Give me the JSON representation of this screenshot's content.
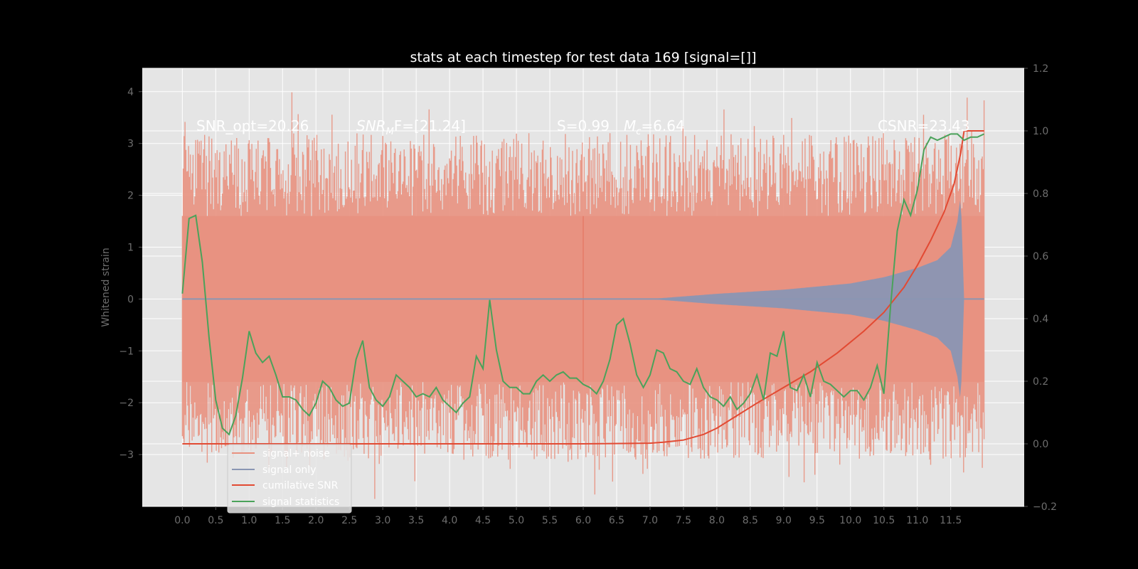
{
  "chart_data": {
    "type": "line",
    "title": "stats at each timestep for test data 169 [signal=[]]",
    "ylabel": "Whitened strain",
    "xlabel": "",
    "xlim": [
      -0.6,
      12.6
    ],
    "ylim": [
      -4,
      4.45
    ],
    "y2lim": [
      -0.2,
      1.2
    ],
    "x_ticks": [
      "0.0",
      "0.5",
      "1.0",
      "1.5",
      "2.0",
      "2.5",
      "3.0",
      "3.5",
      "4.0",
      "4.5",
      "5.0",
      "5.5",
      "6.0",
      "6.5",
      "7.0",
      "7.5",
      "8.0",
      "8.5",
      "9.0",
      "9.5",
      "10.0",
      "10.5",
      "11.0",
      "11.5"
    ],
    "y_ticks": [
      "4",
      "3",
      "2",
      "1",
      "0",
      "−1",
      "−2",
      "−3"
    ],
    "y2_ticks": [
      "1.2",
      "1.0",
      "0.8",
      "0.6",
      "0.4",
      "0.2",
      "0.0",
      "−0.2"
    ],
    "grid": true,
    "legend_position": "lower-left",
    "annotations": {
      "snr_opt": "SNR_opt=20.26",
      "snr_mf": "SNR_MF=[21.24]",
      "mf_sub": "M",
      "mf_rest": "F=[21.24]",
      "snr_base": "SNR",
      "s_value": "S=0.99",
      "mc_base": "M",
      "mc_sub": "c",
      "mc_rest": "=6.64",
      "csnr": "CSNR=23.43"
    },
    "colors": {
      "background": "#000000",
      "axes": "#e5e5e5",
      "grid": "#ffffff",
      "noise": "#e8917f",
      "signal": "#8a96b3",
      "cumulative": "#e24a33",
      "statistics": "#4aa25a"
    },
    "series": [
      {
        "name": "signal+ noise",
        "type": "noise_band",
        "x_range": [
          0,
          12.0
        ],
        "amplitude_envelope": [
          [
            0,
            2.5
          ],
          [
            12.0,
            2.5
          ]
        ]
      },
      {
        "name": "signal only",
        "type": "chirp",
        "x_range": [
          0,
          12.0
        ],
        "envelope": [
          [
            0,
            0.0
          ],
          [
            7.0,
            0.0
          ],
          [
            7.5,
            0.05
          ],
          [
            8.0,
            0.1
          ],
          [
            9.0,
            0.18
          ],
          [
            10.0,
            0.3
          ],
          [
            10.5,
            0.42
          ],
          [
            11.0,
            0.6
          ],
          [
            11.3,
            0.75
          ],
          [
            11.5,
            1.0
          ],
          [
            11.6,
            1.5
          ],
          [
            11.65,
            2.0
          ],
          [
            11.7,
            0.0
          ],
          [
            12.0,
            0.0
          ]
        ]
      },
      {
        "name": "cumilative SNR",
        "axis": "right",
        "x": [
          0,
          6.0,
          7.0,
          7.2,
          7.5,
          7.8,
          8.0,
          8.3,
          8.6,
          9.0,
          9.4,
          9.8,
          10.2,
          10.5,
          10.8,
          11.0,
          11.2,
          11.4,
          11.55,
          11.65,
          11.7,
          12.0
        ],
        "y": [
          0.0,
          0.0,
          0.002,
          0.005,
          0.012,
          0.03,
          0.05,
          0.09,
          0.13,
          0.18,
          0.23,
          0.29,
          0.36,
          0.42,
          0.5,
          0.57,
          0.65,
          0.74,
          0.83,
          0.93,
          1.0,
          1.0
        ]
      },
      {
        "name": "signal statistics",
        "axis": "right",
        "x": [
          0.0,
          0.1,
          0.2,
          0.3,
          0.4,
          0.5,
          0.6,
          0.7,
          0.8,
          0.9,
          1.0,
          1.1,
          1.2,
          1.3,
          1.4,
          1.5,
          1.6,
          1.7,
          1.8,
          1.9,
          2.0,
          2.1,
          2.2,
          2.3,
          2.4,
          2.5,
          2.6,
          2.7,
          2.8,
          2.9,
          3.0,
          3.1,
          3.2,
          3.3,
          3.4,
          3.5,
          3.6,
          3.7,
          3.8,
          3.9,
          4.0,
          4.1,
          4.2,
          4.3,
          4.4,
          4.5,
          4.6,
          4.7,
          4.8,
          4.9,
          5.0,
          5.1,
          5.2,
          5.3,
          5.4,
          5.5,
          5.6,
          5.7,
          5.8,
          5.9,
          6.0,
          6.1,
          6.2,
          6.3,
          6.4,
          6.5,
          6.6,
          6.7,
          6.8,
          6.9,
          7.0,
          7.1,
          7.2,
          7.3,
          7.4,
          7.5,
          7.6,
          7.7,
          7.8,
          7.9,
          8.0,
          8.1,
          8.2,
          8.3,
          8.4,
          8.5,
          8.6,
          8.7,
          8.8,
          8.9,
          9.0,
          9.1,
          9.2,
          9.3,
          9.4,
          9.5,
          9.6,
          9.7,
          9.8,
          9.9,
          10.0,
          10.1,
          10.2,
          10.3,
          10.4,
          10.5,
          10.6,
          10.7,
          10.8,
          10.9,
          11.0,
          11.1,
          11.2,
          11.3,
          11.4,
          11.5,
          11.6,
          11.7,
          11.8,
          11.9,
          12.0
        ],
        "y": [
          0.48,
          0.72,
          0.73,
          0.58,
          0.34,
          0.14,
          0.05,
          0.03,
          0.09,
          0.21,
          0.36,
          0.29,
          0.26,
          0.28,
          0.22,
          0.15,
          0.15,
          0.14,
          0.11,
          0.09,
          0.13,
          0.2,
          0.18,
          0.14,
          0.12,
          0.13,
          0.27,
          0.33,
          0.18,
          0.14,
          0.12,
          0.15,
          0.22,
          0.2,
          0.18,
          0.15,
          0.16,
          0.15,
          0.18,
          0.14,
          0.12,
          0.1,
          0.13,
          0.15,
          0.28,
          0.24,
          0.46,
          0.3,
          0.2,
          0.18,
          0.18,
          0.16,
          0.16,
          0.2,
          0.22,
          0.2,
          0.22,
          0.23,
          0.21,
          0.21,
          0.19,
          0.18,
          0.16,
          0.2,
          0.27,
          0.38,
          0.4,
          0.32,
          0.22,
          0.18,
          0.22,
          0.3,
          0.29,
          0.24,
          0.23,
          0.2,
          0.19,
          0.24,
          0.18,
          0.15,
          0.14,
          0.12,
          0.15,
          0.11,
          0.13,
          0.16,
          0.22,
          0.14,
          0.29,
          0.28,
          0.36,
          0.18,
          0.17,
          0.22,
          0.15,
          0.26,
          0.2,
          0.19,
          0.17,
          0.15,
          0.17,
          0.17,
          0.14,
          0.18,
          0.25,
          0.16,
          0.44,
          0.68,
          0.78,
          0.73,
          0.81,
          0.94,
          0.98,
          0.97,
          0.98,
          0.99,
          0.99,
          0.97,
          0.98,
          0.98,
          0.99
        ]
      }
    ],
    "legend": [
      "signal+ noise",
      "signal only",
      "cumilative SNR",
      "signal statistics"
    ]
  }
}
